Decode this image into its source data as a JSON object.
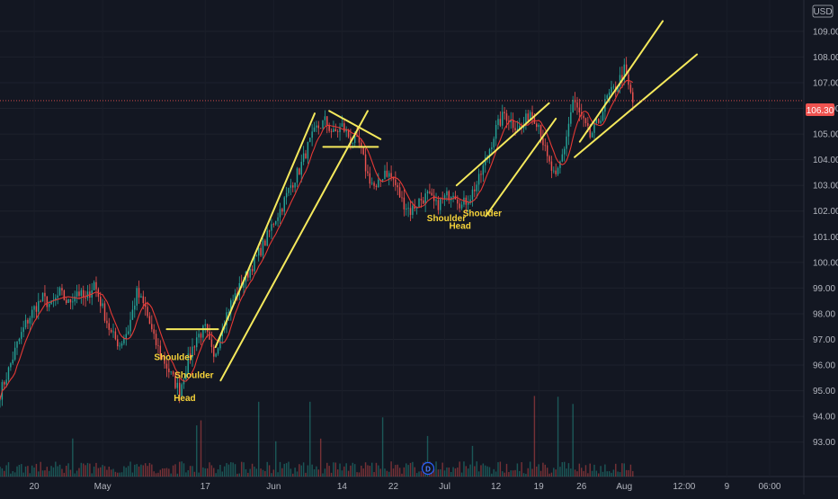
{
  "chart": {
    "currency_label": "USD",
    "last_price_label": "106.30",
    "event_marker_label": "D",
    "colors": {
      "background": "#131722",
      "up": "#26a69a",
      "down": "#ef5350",
      "moving_average": "#e53935",
      "trendline": "#f5e95c",
      "annotation_text": "#f7d43a",
      "price_line": "#ef5350",
      "event_marker": "#2962ff",
      "axis_text": "#b2b5be"
    }
  },
  "chart_data": {
    "type": "candlestick",
    "title": "",
    "xlabel": "",
    "ylabel": "",
    "ylim": [
      92.5,
      109.8
    ],
    "last_price": 106.3,
    "y_ticks": [
      "93.00",
      "94.00",
      "95.00",
      "96.00",
      "97.00",
      "98.00",
      "99.00",
      "100.00",
      "101.00",
      "102.00",
      "103.00",
      "104.00",
      "105.00",
      "106.00",
      "107.00",
      "108.00",
      "109.00"
    ],
    "x_ticks": [
      {
        "label": "20",
        "index": 4
      },
      {
        "label": "May",
        "index": 12
      },
      {
        "label": "17",
        "index": 24
      },
      {
        "label": "Jun",
        "index": 32
      },
      {
        "label": "14",
        "index": 40
      },
      {
        "label": "22",
        "index": 46
      },
      {
        "label": "Jul",
        "index": 52
      },
      {
        "label": "12",
        "index": 58
      },
      {
        "label": "19",
        "index": 63
      },
      {
        "label": "26",
        "index": 68
      },
      {
        "label": "Aug",
        "index": 73
      },
      {
        "label": "12:00",
        "index": 80
      },
      {
        "label": "9",
        "index": 85
      },
      {
        "label": "06:00",
        "index": 90
      }
    ],
    "x_range": [
      0,
      94
    ],
    "price_path": [
      [
        0,
        94.9
      ],
      [
        1,
        95.8
      ],
      [
        2,
        96.8
      ],
      [
        3,
        97.6
      ],
      [
        4,
        98.2
      ],
      [
        5,
        98.6
      ],
      [
        6,
        98.3
      ],
      [
        7,
        98.8
      ],
      [
        8,
        98.4
      ],
      [
        9,
        98.9
      ],
      [
        10,
        98.5
      ],
      [
        11,
        99.2
      ],
      [
        12,
        98.2
      ],
      [
        13,
        97.2
      ],
      [
        14,
        96.8
      ],
      [
        15,
        97.4
      ],
      [
        16,
        98.8
      ],
      [
        17,
        98.2
      ],
      [
        18,
        97.0
      ],
      [
        19,
        96.3
      ],
      [
        20,
        95.6
      ],
      [
        21,
        95.0
      ],
      [
        22,
        96.2
      ],
      [
        23,
        97.1
      ],
      [
        24,
        97.4
      ],
      [
        25,
        96.2
      ],
      [
        26,
        97.6
      ],
      [
        27,
        98.4
      ],
      [
        28,
        99.0
      ],
      [
        29,
        99.6
      ],
      [
        30,
        100.2
      ],
      [
        31,
        100.8
      ],
      [
        32,
        101.6
      ],
      [
        33,
        102.2
      ],
      [
        34,
        103.0
      ],
      [
        35,
        103.6
      ],
      [
        36,
        104.5
      ],
      [
        37,
        105.2
      ],
      [
        38,
        105.5
      ],
      [
        39,
        105.0
      ],
      [
        40,
        105.3
      ],
      [
        41,
        104.8
      ],
      [
        42,
        104.6
      ],
      [
        43,
        103.4
      ],
      [
        44,
        102.8
      ],
      [
        45,
        103.6
      ],
      [
        46,
        103.2
      ],
      [
        47,
        102.4
      ],
      [
        48,
        102.0
      ],
      [
        49,
        102.4
      ],
      [
        50,
        102.6
      ],
      [
        51,
        102.2
      ],
      [
        52,
        102.5
      ],
      [
        53,
        102.8
      ],
      [
        54,
        102.2
      ],
      [
        55,
        102.6
      ],
      [
        56,
        103.2
      ],
      [
        57,
        104.2
      ],
      [
        58,
        105.2
      ],
      [
        59,
        105.8
      ],
      [
        60,
        105.4
      ],
      [
        61,
        105.2
      ],
      [
        62,
        105.9
      ],
      [
        63,
        105.4
      ],
      [
        64,
        104.0
      ],
      [
        65,
        103.2
      ],
      [
        66,
        104.5
      ],
      [
        67,
        106.3
      ],
      [
        68,
        105.6
      ],
      [
        69,
        104.9
      ],
      [
        70,
        105.5
      ],
      [
        71,
        106.4
      ],
      [
        72,
        106.8
      ],
      [
        73,
        107.5
      ],
      [
        74,
        106.2
      ]
    ],
    "trendlines": [
      {
        "name": "neckline-1",
        "points": [
          [
            19.5,
            97.4
          ],
          [
            25.5,
            97.4
          ]
        ]
      },
      {
        "name": "channel-1-upper",
        "points": [
          [
            25.2,
            96.7
          ],
          [
            36.8,
            105.8
          ]
        ]
      },
      {
        "name": "channel-1-lower",
        "points": [
          [
            25.8,
            95.4
          ],
          [
            43.0,
            105.9
          ]
        ]
      },
      {
        "name": "triangle-upper",
        "points": [
          [
            38.5,
            105.9
          ],
          [
            44.5,
            104.8
          ]
        ]
      },
      {
        "name": "triangle-lower",
        "points": [
          [
            37.8,
            104.5
          ],
          [
            44.2,
            104.5
          ]
        ]
      },
      {
        "name": "channel-2-upper",
        "points": [
          [
            53.4,
            103.0
          ],
          [
            64.2,
            106.2
          ]
        ]
      },
      {
        "name": "channel-2-lower",
        "points": [
          [
            56.8,
            101.8
          ],
          [
            65.0,
            105.6
          ]
        ]
      },
      {
        "name": "channel-3-upper",
        "points": [
          [
            67.8,
            104.7
          ],
          [
            77.5,
            109.4
          ]
        ]
      },
      {
        "name": "channel-3-lower",
        "points": [
          [
            67.2,
            104.1
          ],
          [
            81.5,
            108.1
          ]
        ]
      }
    ],
    "annotations": [
      {
        "text": "Shoulder",
        "x": 20.3,
        "y": 96.2
      },
      {
        "text": "Shoulder",
        "x": 22.7,
        "y": 95.5
      },
      {
        "text": "Head",
        "x": 21.6,
        "y": 94.6
      },
      {
        "text": "Shoulder",
        "x": 52.2,
        "y": 101.6
      },
      {
        "text": "Head",
        "x": 53.8,
        "y": 101.3
      },
      {
        "text": "Shoulder",
        "x": 56.4,
        "y": 101.8
      }
    ]
  }
}
